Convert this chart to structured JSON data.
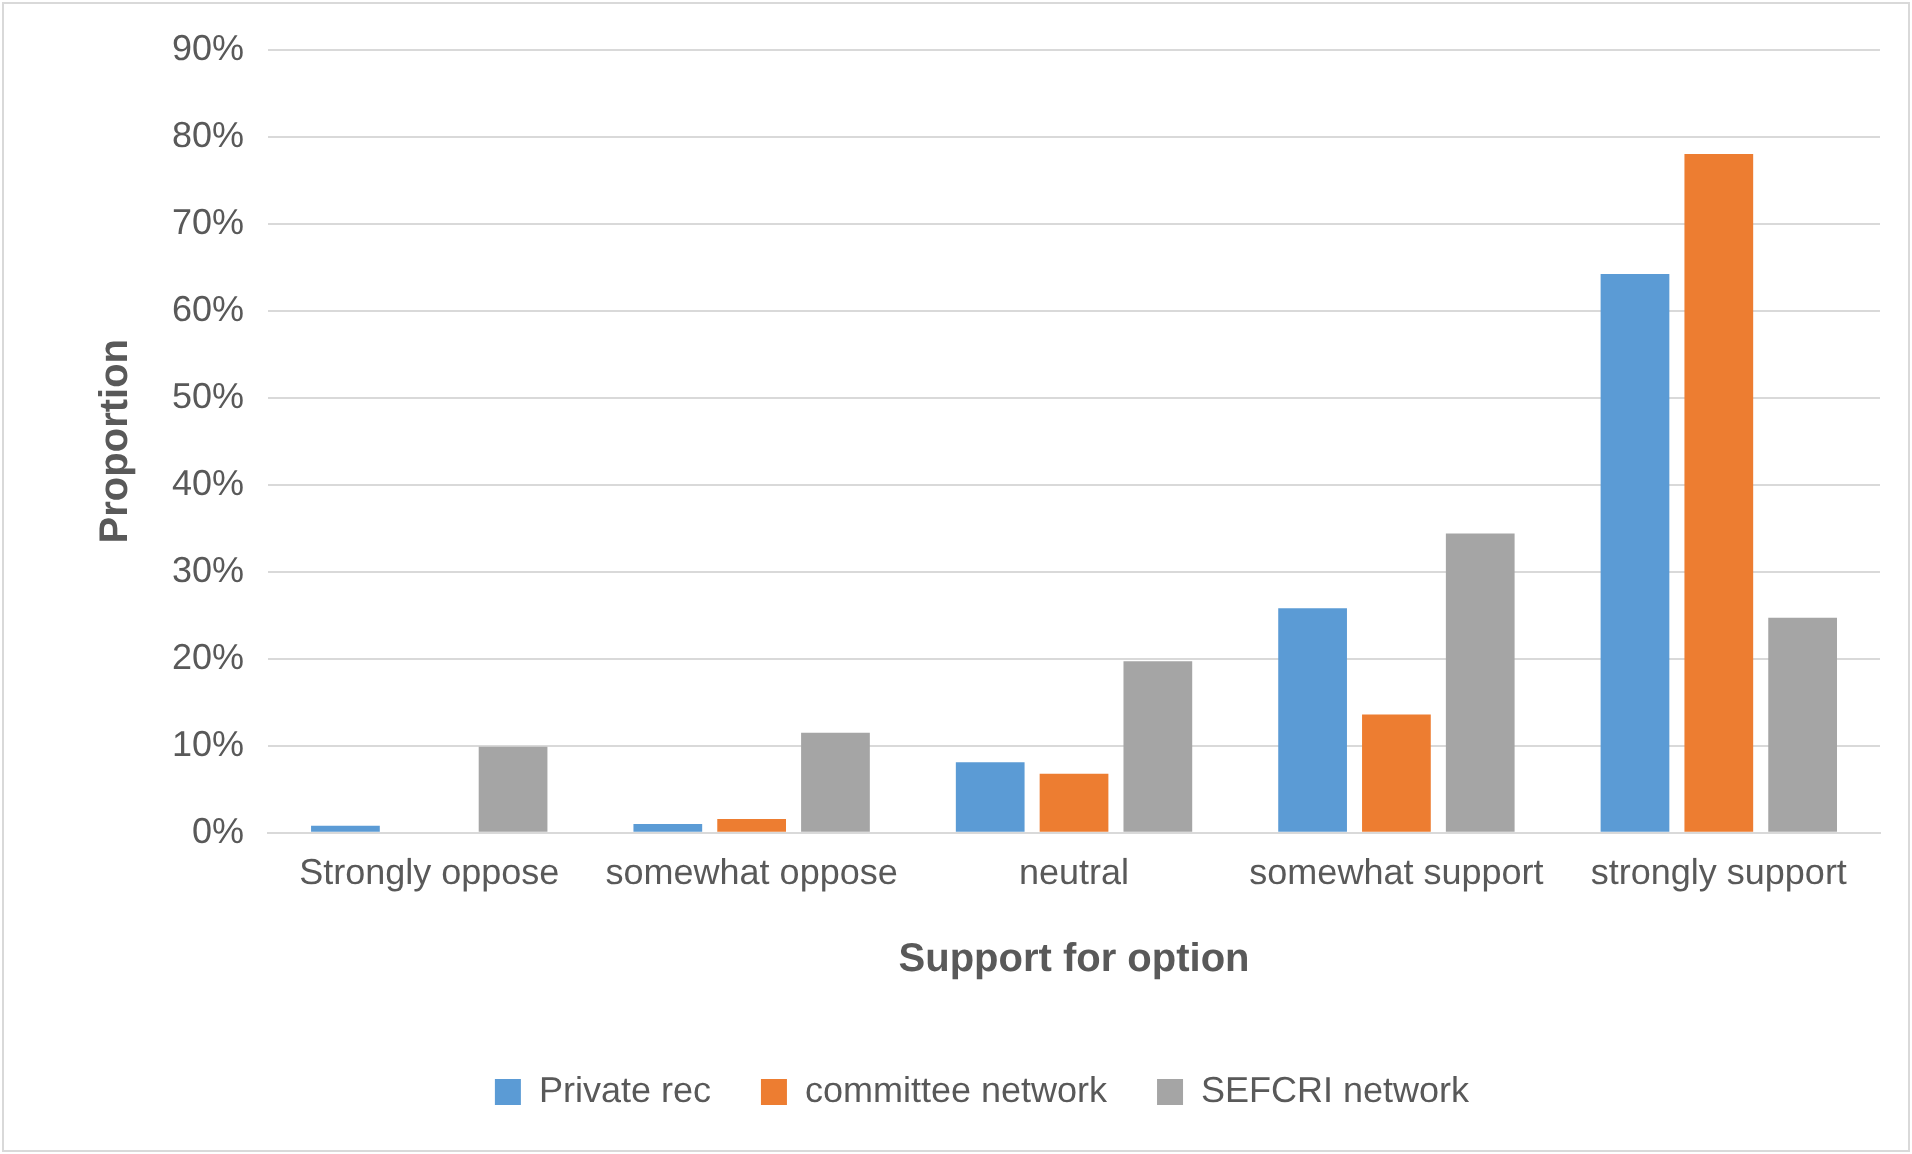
{
  "chart_data": {
    "type": "bar",
    "xlabel": "Support for option",
    "ylabel": "Proportion",
    "categories": [
      "Strongly oppose",
      "somewhat oppose",
      "neutral",
      "somewhat support",
      "strongly support"
    ],
    "series": [
      {
        "name": "Private rec",
        "color": "#5b9bd5",
        "values": [
          0.8,
          1.0,
          8.1,
          25.8,
          64.2
        ]
      },
      {
        "name": "committee network",
        "color": "#ed7d31",
        "values": [
          0,
          1.6,
          6.8,
          13.6,
          78.0
        ]
      },
      {
        "name": "SEFCRI network",
        "color": "#a5a5a5",
        "values": [
          9.9,
          11.5,
          19.7,
          34.4,
          24.7
        ]
      }
    ],
    "ylim": [
      0,
      90
    ],
    "yticks": [
      {
        "value": 0,
        "label": "0%"
      },
      {
        "value": 10,
        "label": "10%"
      },
      {
        "value": 20,
        "label": "20%"
      },
      {
        "value": 30,
        "label": "30%"
      },
      {
        "value": 40,
        "label": "40%"
      },
      {
        "value": 50,
        "label": "50%"
      },
      {
        "value": 60,
        "label": "60%"
      },
      {
        "value": 70,
        "label": "70%"
      },
      {
        "value": 80,
        "label": "80%"
      },
      {
        "value": 90,
        "label": "90%"
      }
    ],
    "grid": "y",
    "legend": "bottom"
  }
}
